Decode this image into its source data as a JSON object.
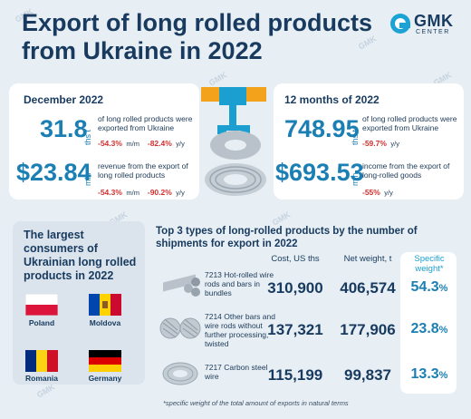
{
  "title": "Export of long rolled products from Ukraine in 2022",
  "logo": {
    "name": "GMK",
    "sub": "CENTER"
  },
  "december": {
    "header": "December 2022",
    "volume": {
      "value": "31.8",
      "unit": "ths t",
      "desc": "of long rolled products were exported from Ukraine",
      "mm": "-54.3%",
      "mm_unit": "m/m",
      "yy": "-82.4%",
      "yy_unit": "y/y"
    },
    "revenue": {
      "value": "$23.84",
      "unit": "mln",
      "desc": "revenue from the export of long rolled products",
      "mm": "-54.3%",
      "mm_unit": "m/m",
      "yy": "-90.2%",
      "yy_unit": "y/y"
    }
  },
  "year": {
    "header": "12 months of 2022",
    "volume": {
      "value": "748.95",
      "unit": "ths t",
      "desc": "of long rolled products were exported from Ukraine",
      "yy": "-59.7%",
      "yy_unit": "y/y"
    },
    "revenue": {
      "value": "$693.53",
      "unit": "mln",
      "desc": "income from the export of long-rolled goods",
      "yy": "-55%",
      "yy_unit": "y/y"
    }
  },
  "consumers": {
    "title": "The largest consumers of Ukrainian long rolled products in 2022",
    "countries": [
      "Poland",
      "Moldova",
      "Romania",
      "Germany"
    ]
  },
  "top3": {
    "title": "Top 3 types of long-rolled products by the number of shipments for export in 2022",
    "headers": {
      "cost": "Cost, US ths",
      "net": "Net weight, t",
      "share": "Specific weight*"
    },
    "rows": [
      {
        "name": "7213 Hot-rolled wire rods and bars in bundles",
        "cost": "310,900",
        "net": "406,574",
        "share": "54.3",
        "pct": "%"
      },
      {
        "name": "7214 Other bars and wire rods without further processing, twisted",
        "cost": "137,321",
        "net": "177,906",
        "share": "23.8",
        "pct": "%"
      },
      {
        "name": "7217 Carbon steel wire",
        "cost": "115,199",
        "net": "99,837",
        "share": "13.3",
        "pct": "%"
      }
    ],
    "footnote": "*specific weight of the total amount of exports in natural terms"
  },
  "watermark": "GMK",
  "colors": {
    "accent": "#1b7fb4",
    "negative": "#d13030",
    "title": "#173a5e",
    "background": "#e7eef4"
  }
}
